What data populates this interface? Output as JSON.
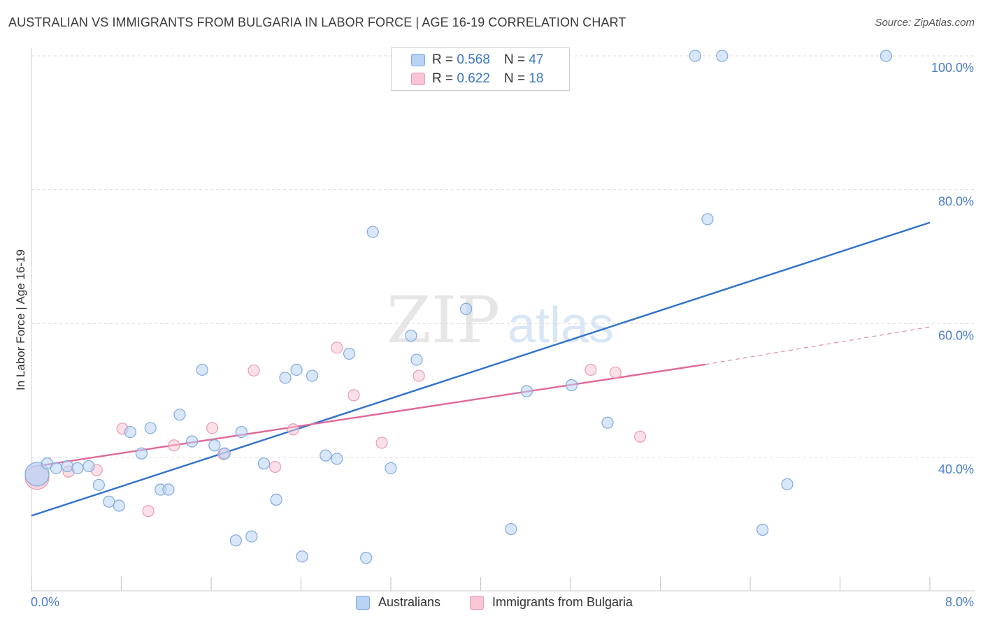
{
  "title": "AUSTRALIAN VS IMMIGRANTS FROM BULGARIA IN LABOR FORCE | AGE 16-19 CORRELATION CHART",
  "source": "Source: ZipAtlas.com",
  "watermark": {
    "zip": "ZIP",
    "atlas": "atlas"
  },
  "legend_top": {
    "rows": [
      {
        "r_label": "R =",
        "r_value": "0.568",
        "n_label": "N =",
        "n_value": "47"
      },
      {
        "r_label": "R =",
        "r_value": "0.622",
        "n_label": "N =",
        "n_value": "18"
      }
    ]
  },
  "colors": {
    "australians_fill": "#b9d3f5",
    "australians_stroke": "#7fa8de",
    "australians_line": "#2f72cc",
    "bulgaria_fill": "#f8c6d4",
    "bulgaria_stroke": "#ea9ab2",
    "bulgaria_line": "#e0689a",
    "tick_text": "#4a7cc9"
  },
  "chart_data": {
    "type": "scatter",
    "title": "AUSTRALIAN VS IMMIGRANTS FROM BULGARIA IN LABOR FORCE | AGE 16-19 CORRELATION CHART",
    "xlabel": "",
    "ylabel": "In Labor Force | Age 16-19",
    "xlim": [
      0,
      8
    ],
    "ylim": [
      22,
      102
    ],
    "x_tick_labels": [
      "0.0%",
      "8.0%"
    ],
    "y_ticks": [
      40,
      60,
      80,
      100
    ],
    "y_tick_labels": [
      "40.0%",
      "60.0%",
      "80.0%",
      "100.0%"
    ],
    "legend": [
      "Australians",
      "Immigrants from Bulgaria"
    ],
    "series": [
      {
        "name": "Australians",
        "r": 0.568,
        "n": 47,
        "trend": {
          "x0": 0.0,
          "y0": 31.3,
          "x1": 8.0,
          "y1": 75.1
        },
        "points": [
          {
            "x": 0.05,
            "y": 37.5,
            "big": true
          },
          {
            "x": 0.14,
            "y": 39.1
          },
          {
            "x": 0.22,
            "y": 38.4
          },
          {
            "x": 0.32,
            "y": 38.7
          },
          {
            "x": 0.41,
            "y": 38.4
          },
          {
            "x": 0.51,
            "y": 38.7
          },
          {
            "x": 0.6,
            "y": 35.9
          },
          {
            "x": 0.69,
            "y": 33.4
          },
          {
            "x": 0.78,
            "y": 32.8
          },
          {
            "x": 0.88,
            "y": 43.8
          },
          {
            "x": 0.98,
            "y": 40.6
          },
          {
            "x": 1.06,
            "y": 44.4
          },
          {
            "x": 1.15,
            "y": 35.2
          },
          {
            "x": 1.22,
            "y": 35.2
          },
          {
            "x": 1.32,
            "y": 46.4
          },
          {
            "x": 1.43,
            "y": 42.4
          },
          {
            "x": 1.52,
            "y": 53.1
          },
          {
            "x": 1.63,
            "y": 41.8
          },
          {
            "x": 1.72,
            "y": 40.6
          },
          {
            "x": 1.82,
            "y": 27.6
          },
          {
            "x": 1.87,
            "y": 43.8
          },
          {
            "x": 1.96,
            "y": 28.2
          },
          {
            "x": 2.07,
            "y": 39.1
          },
          {
            "x": 2.18,
            "y": 33.7
          },
          {
            "x": 2.26,
            "y": 51.9
          },
          {
            "x": 2.36,
            "y": 53.1
          },
          {
            "x": 2.41,
            "y": 25.2
          },
          {
            "x": 2.5,
            "y": 52.2
          },
          {
            "x": 2.62,
            "y": 40.3
          },
          {
            "x": 2.72,
            "y": 39.8
          },
          {
            "x": 2.83,
            "y": 55.5
          },
          {
            "x": 2.98,
            "y": 25.0
          },
          {
            "x": 3.04,
            "y": 73.7
          },
          {
            "x": 3.2,
            "y": 38.4
          },
          {
            "x": 3.38,
            "y": 58.2
          },
          {
            "x": 3.43,
            "y": 54.6
          },
          {
            "x": 3.87,
            "y": 62.2
          },
          {
            "x": 4.27,
            "y": 29.3
          },
          {
            "x": 4.41,
            "y": 49.9
          },
          {
            "x": 4.81,
            "y": 50.8
          },
          {
            "x": 5.13,
            "y": 45.2
          },
          {
            "x": 5.91,
            "y": 100.0
          },
          {
            "x": 6.02,
            "y": 75.6
          },
          {
            "x": 6.15,
            "y": 100.0
          },
          {
            "x": 6.51,
            "y": 29.2
          },
          {
            "x": 6.73,
            "y": 36.0
          },
          {
            "x": 7.61,
            "y": 100.0
          }
        ]
      },
      {
        "name": "Immigrants from Bulgaria",
        "r": 0.622,
        "n": 18,
        "trend": {
          "x0": 0.0,
          "y0": 38.6,
          "x1": 6.0,
          "y1": 53.9,
          "dash_x1": 8.0,
          "dash_y1": 59.5
        },
        "points": [
          {
            "x": 0.05,
            "y": 37.0,
            "big": true
          },
          {
            "x": 0.33,
            "y": 37.9
          },
          {
            "x": 0.58,
            "y": 38.1
          },
          {
            "x": 0.81,
            "y": 44.3
          },
          {
            "x": 1.04,
            "y": 32.0
          },
          {
            "x": 1.27,
            "y": 41.8
          },
          {
            "x": 1.61,
            "y": 44.4
          },
          {
            "x": 1.71,
            "y": 40.5
          },
          {
            "x": 1.98,
            "y": 53.0
          },
          {
            "x": 2.17,
            "y": 38.6
          },
          {
            "x": 2.33,
            "y": 44.2
          },
          {
            "x": 2.72,
            "y": 56.4
          },
          {
            "x": 2.87,
            "y": 49.3
          },
          {
            "x": 3.12,
            "y": 42.2
          },
          {
            "x": 3.45,
            "y": 52.2
          },
          {
            "x": 4.98,
            "y": 53.1
          },
          {
            "x": 5.2,
            "y": 52.7
          },
          {
            "x": 5.42,
            "y": 43.1
          }
        ]
      }
    ]
  }
}
